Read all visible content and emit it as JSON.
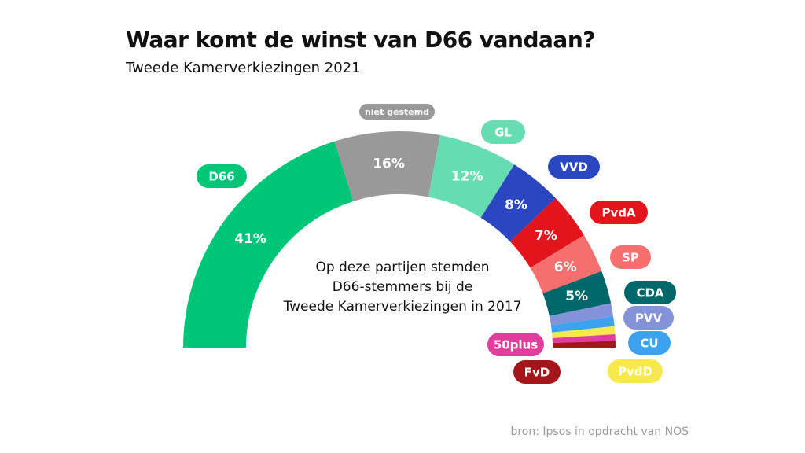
{
  "header": {
    "title": "Waar komt de winst van D66 vandaan?",
    "subtitle": "Tweede Kamerverkiezingen 2021"
  },
  "source": "bron: Ipsos in opdracht van NOS",
  "chart_data": {
    "type": "pie",
    "shape": "half-donut",
    "title": "Waar komt de winst van D66 vandaan?",
    "subtitle": "Tweede Kamerverkiezingen 2021",
    "center_text": [
      "Op deze partijen stemden",
      "D66-stemmers bij de",
      "Tweede Kamerverkiezingen in 2017"
    ],
    "unit": "%",
    "slices": [
      {
        "label": "D66",
        "value": 41,
        "value_label": "41%",
        "color": "#00c677",
        "label_text_color": "#ffffff"
      },
      {
        "label": "niet gestemd",
        "value": 16,
        "value_label": "16%",
        "color": "#999999",
        "label_text_color": "#ffffff"
      },
      {
        "label": "GL",
        "value": 12,
        "value_label": "12%",
        "color": "#66dcb2",
        "label_text_color": "#ffffff"
      },
      {
        "label": "VVD",
        "value": 8,
        "value_label": "8%",
        "color": "#2a46c1",
        "label_text_color": "#ffffff"
      },
      {
        "label": "PvdA",
        "value": 7,
        "value_label": "7%",
        "color": "#e3141c",
        "label_text_color": "#ffffff"
      },
      {
        "label": "SP",
        "value": 6,
        "value_label": "6%",
        "color": "#f56f6f",
        "label_text_color": "#ffffff"
      },
      {
        "label": "CDA",
        "value": 5,
        "value_label": "5%",
        "color": "#00686a",
        "label_text_color": "#ffffff"
      },
      {
        "label": "PVV",
        "value": 2,
        "value_label": "",
        "color": "#8493d9",
        "label_text_color": "#ffffff"
      },
      {
        "label": "CU",
        "value": 1.5,
        "value_label": "",
        "color": "#3ca2f0",
        "label_text_color": "#ffffff"
      },
      {
        "label": "PvdD",
        "value": 1.2,
        "value_label": "",
        "color": "#f7e94d",
        "label_text_color": "#ffffff"
      },
      {
        "label": "50plus",
        "value": 1,
        "value_label": "",
        "color": "#e03d9c",
        "label_text_color": "#ffffff"
      },
      {
        "label": "FvD",
        "value": 1,
        "value_label": "",
        "color": "#a4161a",
        "label_text_color": "#ffffff"
      }
    ]
  }
}
